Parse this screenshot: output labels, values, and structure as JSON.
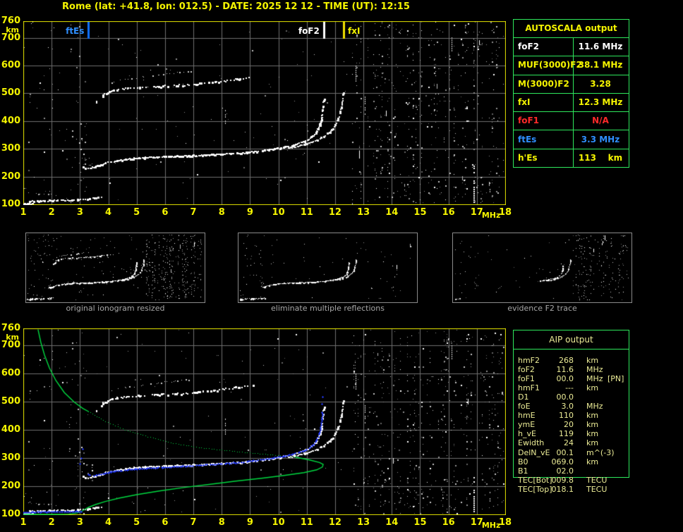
{
  "title": "Rome (lat: +41.8, lon: 012.5) - DATE: 2025 12 12 - TIME (UT): 12:15",
  "colors": {
    "background": "#000000",
    "axis_yellow": "#f5f500",
    "plot_border": "#e6e600",
    "grid": "#6f6f6f",
    "table_border_green": "#2ee85c",
    "caption_gray": "#a8a8a8",
    "profile_green": "#00d940",
    "restored_blue": "#2439f0",
    "ftes_blue": "#2f8fff",
    "fof1_red": "#ff2a2a",
    "trace_white": "#ffffff"
  },
  "top_plot": {
    "x_ticks": [
      1,
      2,
      3,
      4,
      5,
      6,
      7,
      8,
      9,
      10,
      11,
      12,
      13,
      14,
      15,
      16,
      17,
      18
    ],
    "y_ticks": [
      760,
      700,
      600,
      500,
      400,
      300,
      200,
      100
    ],
    "x_unit": "MHz",
    "y_unit": "km",
    "markers": [
      {
        "label": "ftEs",
        "mhz": 3.3,
        "color": "#2f8fff",
        "line": "#0f70ff",
        "side": "left"
      },
      {
        "label": "foF2",
        "mhz": 11.6,
        "color": "#ffffff",
        "line": "#ffffff",
        "side": "left"
      },
      {
        "label": "fxI",
        "mhz": 12.3,
        "color": "#f5f500",
        "line": "#f0e000",
        "side": "right"
      }
    ]
  },
  "bottom_plot": {
    "x_ticks": [
      1,
      2,
      3,
      4,
      5,
      6,
      7,
      8,
      9,
      10,
      11,
      12,
      13,
      14,
      15,
      16,
      17,
      18
    ],
    "y_ticks": [
      760,
      700,
      600,
      500,
      400,
      300,
      200,
      100
    ],
    "x_unit": "MHz",
    "y_unit": "km"
  },
  "autoscala_table": {
    "title": "AUTOSCALA output",
    "rows": [
      {
        "label": "foF2",
        "value": "11.6 MHz",
        "color": "#ffffff"
      },
      {
        "label": "MUF(3000)F2",
        "value": "38.1 MHz",
        "color": "#f5f500"
      },
      {
        "label": "M(3000)F2",
        "value": "3.28",
        "color": "#f5f500"
      },
      {
        "label": "fxI",
        "value": "12.3 MHz",
        "color": "#f5f500"
      },
      {
        "label": "foF1",
        "value": "N/A",
        "color": "#ff2a2a"
      },
      {
        "label": "ftEs",
        "value": "3.3 MHz",
        "color": "#2f8fff"
      },
      {
        "label": "h'Es",
        "value": "113    km",
        "color": "#f5f500"
      }
    ]
  },
  "aip_table": {
    "title": "AIP output",
    "rows": [
      {
        "label": "hmF2",
        "value": "268",
        "unit": "km",
        "extra": ""
      },
      {
        "label": "foF2",
        "value": "11.6",
        "unit": "MHz",
        "extra": ""
      },
      {
        "label": "foF1",
        "value": "00.0",
        "unit": "MHz",
        "extra": "[PN]"
      },
      {
        "label": "hmF1",
        "value": "---",
        "unit": "km",
        "extra": ""
      },
      {
        "label": "D1",
        "value": "00.0",
        "unit": "",
        "extra": ""
      },
      {
        "label": "foE",
        "value": "3.0",
        "unit": "MHz",
        "extra": ""
      },
      {
        "label": "hmE",
        "value": "110",
        "unit": "km",
        "extra": ""
      },
      {
        "label": "ymE",
        "value": "20",
        "unit": "km",
        "extra": ""
      },
      {
        "label": "h_vE",
        "value": "119",
        "unit": "km",
        "extra": ""
      },
      {
        "label": "Ewidth",
        "value": "24",
        "unit": "km",
        "extra": ""
      },
      {
        "label": "DelN_vE",
        "value": "00.1",
        "unit": "m^(-3)",
        "extra": ""
      },
      {
        "label": "B0",
        "value": "069.0",
        "unit": "km",
        "extra": ""
      },
      {
        "label": "B1",
        "value": "02.0",
        "unit": "",
        "extra": ""
      },
      {
        "label": "TEC[Bot]",
        "value": "009.8",
        "unit": "TECU",
        "extra": ""
      },
      {
        "label": "TEC[Top]",
        "value": "018.1",
        "unit": "TECU",
        "extra": ""
      }
    ]
  },
  "thumbnails": [
    {
      "caption": "original ionogram resized",
      "traces": [
        "es_main",
        "es_tip",
        "f_o",
        "f_x",
        "second_hop",
        "second_hop_upper"
      ],
      "noise": {
        "left_band": 0.02,
        "mid_sparse": 0.006,
        "right_band": 0.07,
        "f_start_cluster": 0.07
      },
      "seed": 7
    },
    {
      "caption": "eliminate multiple reflections",
      "traces": [
        "es_main",
        "es_tip",
        "f_o",
        "f_x"
      ],
      "noise": {
        "left_band": 0.013,
        "mid_sparse": 0.002,
        "right_band": 0.006,
        "f_start_cluster": 0.05
      },
      "seed": 8
    },
    {
      "caption": "evidence F2 trace",
      "traces": [
        "es_sparse",
        "f_o_rise",
        "f_x"
      ],
      "noise": {
        "left_band": 0.008,
        "mid_sparse": 0.003,
        "right_band": 0.04,
        "f_start_cluster": 0.05
      },
      "seed": 9
    }
  ],
  "chart_data": {
    "type": "scatter",
    "x_axis": {
      "label": "MHz",
      "range": [
        1,
        18
      ]
    },
    "y_axis": {
      "label": "km",
      "range": [
        100,
        760
      ]
    },
    "scaled_values": {
      "foF2_MHz": 11.6,
      "MUF3000F2_MHz": 38.1,
      "M3000F2": 3.28,
      "fxI_MHz": 12.3,
      "foF1": null,
      "ftEs_MHz": 3.3,
      "hEs_km": 113,
      "hmF2_km": 268
    },
    "traces": {
      "es_main": {
        "pts": [
          [
            1.0,
            113
          ],
          [
            1.5,
            113
          ],
          [
            2.0,
            114
          ],
          [
            2.5,
            115
          ],
          [
            2.9,
            117
          ],
          [
            3.2,
            120
          ],
          [
            3.5,
            124
          ]
        ],
        "style": {
          "size": 2,
          "step": 1.8,
          "gap": 0.3,
          "jitter": 0.8,
          "color": "#ffffff"
        }
      },
      "es_tail": {
        "pts": [
          [
            3.55,
            125
          ],
          [
            3.75,
            128
          ],
          [
            3.95,
            131
          ]
        ],
        "style": {
          "size": 2,
          "step": 2.5,
          "gap": 0.5,
          "jitter": 0.8,
          "color": "#e8e8e8"
        }
      },
      "es_tip": {
        "pts": [
          [
            1.0,
            103
          ],
          [
            1.18,
            103
          ],
          [
            1.35,
            104
          ]
        ],
        "style": {
          "size": 2,
          "step": 1.5,
          "gap": 0.1,
          "jitter": 0.6,
          "color": "#ffffff"
        }
      },
      "es_sparse": {
        "pts": [
          [
            1.0,
            112
          ],
          [
            1.3,
            113
          ],
          [
            1.6,
            114
          ]
        ],
        "style": {
          "size": 1,
          "step": 2.5,
          "gap": 0.55,
          "jitter": 0.8,
          "color": "#d0d0d0"
        }
      },
      "es_fragment": {
        "pts": [
          [
            1.2,
            141
          ],
          [
            1.6,
            137
          ],
          [
            2.0,
            134
          ],
          [
            2.35,
            131
          ]
        ],
        "style": {
          "size": 1,
          "step": 2.6,
          "gap": 0.6,
          "jitter": 0.7,
          "color": "#b0b0b0"
        }
      },
      "f_o": {
        "pts": [
          [
            3.08,
            236
          ],
          [
            3.2,
            228
          ],
          [
            3.35,
            231
          ],
          [
            3.6,
            240
          ],
          [
            3.9,
            249
          ],
          [
            4.3,
            258
          ],
          [
            4.9,
            266
          ],
          [
            5.6,
            271
          ],
          [
            6.4,
            274
          ],
          [
            7.2,
            277
          ],
          [
            8.0,
            281
          ],
          [
            8.6,
            285
          ],
          [
            9.2,
            291
          ],
          [
            9.7,
            298
          ],
          [
            10.2,
            307
          ],
          [
            10.6,
            317
          ],
          [
            11.0,
            331
          ],
          [
            11.2,
            345
          ],
          [
            11.35,
            363
          ],
          [
            11.45,
            387
          ],
          [
            11.52,
            415
          ],
          [
            11.57,
            450
          ],
          [
            11.6,
            480
          ]
        ],
        "style": {
          "size": 2,
          "step": 1.6,
          "gap": 0.15,
          "jitter": 0.7,
          "color": "#ffffff"
        }
      },
      "f_o_rise": {
        "pts": [
          [
            9.3,
            293
          ],
          [
            9.7,
            298
          ],
          [
            10.2,
            307
          ],
          [
            10.6,
            317
          ],
          [
            11.0,
            331
          ],
          [
            11.2,
            345
          ],
          [
            11.35,
            363
          ],
          [
            11.45,
            387
          ],
          [
            11.52,
            415
          ],
          [
            11.57,
            450
          ]
        ],
        "style": {
          "size": 2,
          "step": 2.2,
          "gap": 0.3,
          "jitter": 0.7,
          "color": "#ffffff"
        }
      },
      "f_o_pts": {
        "pts": [
          [
            3.02,
            300
          ],
          [
            3.06,
            338
          ],
          [
            2.98,
            322
          ],
          [
            3.12,
            282
          ]
        ],
        "style": {
          "type": "points",
          "size": 2,
          "color": "#e0e0e0"
        }
      },
      "f_x": {
        "pts": [
          [
            10.35,
            303
          ],
          [
            10.7,
            311
          ],
          [
            11.05,
            321
          ],
          [
            11.35,
            332
          ],
          [
            11.6,
            346
          ],
          [
            11.8,
            361
          ],
          [
            11.95,
            379
          ],
          [
            12.08,
            402
          ],
          [
            12.17,
            430
          ],
          [
            12.24,
            464
          ],
          [
            12.28,
            507
          ]
        ],
        "style": {
          "size": 2,
          "step": 1.8,
          "gap": 0.22,
          "jitter": 0.7,
          "color": "#f2f2f2"
        }
      },
      "second_hop": {
        "pts": [
          [
            3.55,
            465
          ],
          [
            3.67,
            481
          ],
          [
            3.82,
            496
          ],
          [
            4.02,
            507
          ],
          [
            4.3,
            514
          ],
          [
            4.7,
            519
          ],
          [
            5.1,
            522
          ],
          [
            5.6,
            525
          ],
          [
            6.1,
            527
          ],
          [
            6.6,
            530
          ],
          [
            7.1,
            534
          ],
          [
            7.6,
            539
          ],
          [
            8.1,
            545
          ],
          [
            8.6,
            552
          ],
          [
            9.1,
            560
          ]
        ],
        "style": {
          "size": 2,
          "step": 2.0,
          "gap": 0.38,
          "jitter": 1.0,
          "color": "#ffffff"
        }
      },
      "second_hop_upper": {
        "pts": [
          [
            4.1,
            540
          ],
          [
            4.6,
            549
          ],
          [
            5.2,
            557
          ],
          [
            5.8,
            566
          ],
          [
            6.3,
            572
          ],
          [
            6.9,
            579
          ]
        ],
        "style": {
          "size": 1,
          "step": 3.0,
          "gap": 0.6,
          "jitter": 1.0,
          "color": "#cfcfcf"
        }
      }
    },
    "noise_regions": [
      {
        "name": "left_band",
        "f": [
          1.03,
          3.28
        ],
        "h": [
          102,
          755
        ],
        "density": 0.013,
        "streaky": false
      },
      {
        "name": "mid_sparse",
        "f": [
          3.3,
          12.45
        ],
        "h": [
          102,
          755
        ],
        "density": 0.0045,
        "streaky": false
      },
      {
        "name": "right_band",
        "f": [
          12.55,
          17.95
        ],
        "h": [
          102,
          755
        ],
        "density": 0.052,
        "streaky": true
      },
      {
        "name": "f_start_cluster",
        "f": [
          2.92,
          3.42
        ],
        "h": [
          212,
          292
        ],
        "density": 0.07,
        "streaky": false
      }
    ],
    "noise_streaks": [
      {
        "mhz": 16.88,
        "h": [
          100,
          238
        ],
        "bright": true
      },
      {
        "mhz": 13.05,
        "h": [
          420,
          486
        ],
        "bright": false
      },
      {
        "mhz": 12.72,
        "h": [
          540,
          598
        ],
        "bright": false
      },
      {
        "mhz": 17.45,
        "h": [
          128,
          186
        ],
        "bright": false
      },
      {
        "mhz": 16.1,
        "h": [
          652,
          700
        ],
        "bright": false
      },
      {
        "mhz": 8.12,
        "h": [
          385,
          438
        ],
        "bright": false
      }
    ],
    "profile": {
      "topside_solid": [
        [
          1.52,
          756
        ],
        [
          1.62,
          710
        ],
        [
          1.75,
          665
        ],
        [
          1.92,
          620
        ],
        [
          2.15,
          575
        ],
        [
          2.45,
          532
        ],
        [
          2.8,
          498
        ],
        [
          3.1,
          476
        ],
        [
          3.3,
          465
        ]
      ],
      "mid_dotted": [
        [
          3.3,
          465
        ],
        [
          3.9,
          430
        ],
        [
          4.6,
          400
        ],
        [
          5.4,
          375
        ],
        [
          6.3,
          352
        ],
        [
          7.2,
          337
        ],
        [
          8.1,
          327
        ],
        [
          9.0,
          318
        ],
        [
          9.9,
          310
        ],
        [
          10.6,
          303
        ]
      ],
      "bottom_solid": [
        [
          10.6,
          303
        ],
        [
          11.1,
          293
        ],
        [
          11.45,
          284
        ],
        [
          11.58,
          277
        ],
        [
          11.55,
          268
        ],
        [
          11.35,
          258
        ],
        [
          10.9,
          248
        ],
        [
          10.2,
          238
        ],
        [
          9.4,
          228
        ],
        [
          8.5,
          218
        ],
        [
          7.6,
          207
        ],
        [
          6.7,
          196
        ],
        [
          5.8,
          183
        ],
        [
          5.0,
          170
        ],
        [
          4.4,
          158
        ],
        [
          3.9,
          146
        ],
        [
          3.55,
          135
        ],
        [
          3.3,
          125
        ],
        [
          3.12,
          115
        ],
        [
          3.0,
          108
        ]
      ],
      "e_bottom_solid": [
        [
          3.0,
          108
        ],
        [
          2.85,
          104
        ],
        [
          2.6,
          101
        ],
        [
          2.2,
          100
        ],
        [
          1.7,
          100
        ],
        [
          1.0,
          100
        ]
      ]
    },
    "restored_trace": {
      "es": [
        [
          1.0,
          107
        ],
        [
          2.0,
          108
        ],
        [
          3.05,
          110
        ]
      ],
      "f": [
        [
          3.3,
          242
        ],
        [
          3.5,
          236
        ],
        [
          3.75,
          242
        ],
        [
          4.1,
          250
        ],
        [
          4.6,
          257
        ],
        [
          5.2,
          262
        ],
        [
          5.9,
          266
        ],
        [
          6.6,
          270
        ],
        [
          7.3,
          274
        ],
        [
          8.0,
          278
        ],
        [
          8.6,
          283
        ],
        [
          9.2,
          290
        ],
        [
          9.7,
          297
        ],
        [
          10.2,
          306
        ],
        [
          10.6,
          315
        ],
        [
          11.0,
          329
        ],
        [
          11.2,
          343
        ],
        [
          11.35,
          361
        ],
        [
          11.45,
          384
        ],
        [
          11.5,
          410
        ],
        [
          11.54,
          438
        ],
        [
          11.56,
          462
        ]
      ],
      "isolated": [
        [
          11.55,
          492
        ],
        [
          11.57,
          516
        ],
        [
          3.06,
          300
        ],
        [
          3.1,
          331
        ],
        [
          3.0,
          279
        ]
      ]
    }
  }
}
